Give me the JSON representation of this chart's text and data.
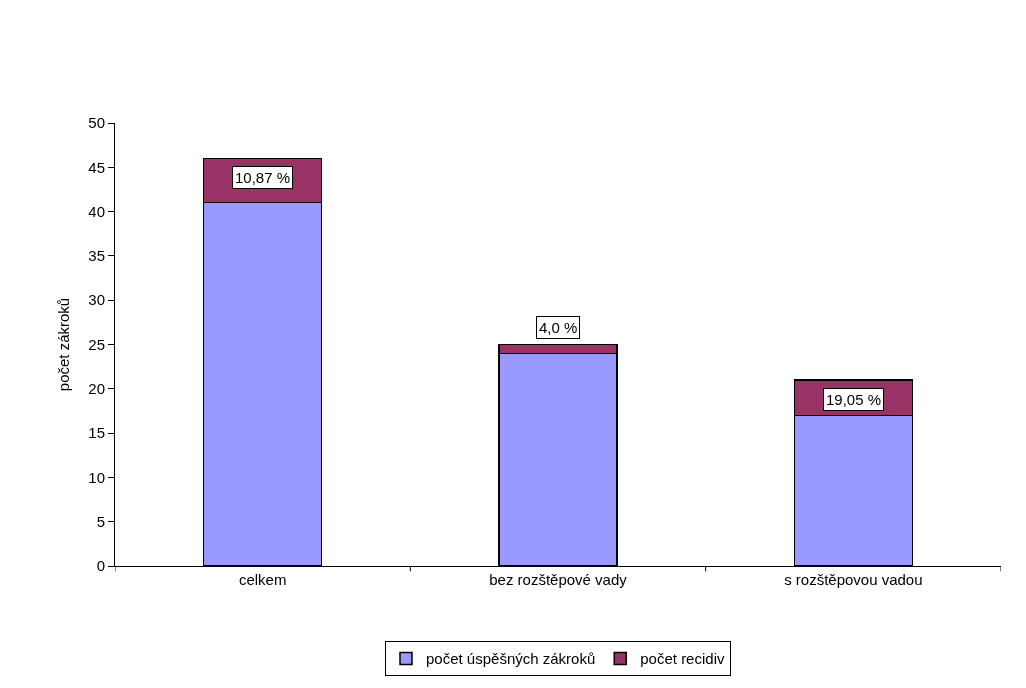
{
  "chart_data": {
    "type": "bar",
    "stacked": true,
    "ylabel": "počet zákroků",
    "categories": [
      "celkem",
      "bez rozštěpové vady",
      "s rozštěpovou vadou"
    ],
    "series": [
      {
        "name": "počet úspěšných zákroků",
        "color": "#9999ff",
        "values": [
          41,
          24,
          17
        ]
      },
      {
        "name": "počet recidiv",
        "color": "#993366",
        "values": [
          5,
          1,
          4
        ]
      }
    ],
    "annotations": [
      {
        "text": "10,87 %",
        "x": "celkem",
        "y": 46
      },
      {
        "text": "4,0 %",
        "x": "bez rozštěpové vady",
        "y": 25
      },
      {
        "text": "19,05 %",
        "x": "s rozštěpovou vadou",
        "y": 21
      }
    ],
    "ylim": [
      0,
      50
    ],
    "yticks": [
      0,
      5,
      10,
      15,
      20,
      25,
      30,
      35,
      40,
      45,
      50
    ],
    "legend": "bottom"
  }
}
